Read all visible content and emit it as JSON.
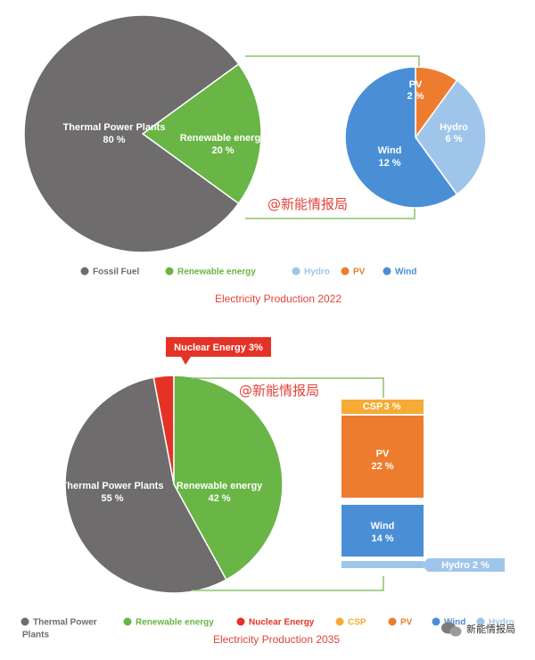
{
  "colors": {
    "fossil": "#6e6c6c",
    "renewable": "#69b545",
    "hydro": "#9fc6ea",
    "pv": "#ee7c2e",
    "wind": "#4a8fd6",
    "nuclear": "#e43326",
    "csp": "#f5ab34",
    "connector": "#8cc46a",
    "caption": "#e0433b"
  },
  "watermark": "@新能情报局",
  "wechat_badge": "新能情报局",
  "chart_data": [
    {
      "type": "pie",
      "title": "Electricity Production 2022",
      "slices": [
        {
          "key": "thermal",
          "label": "Thermal Power Plants",
          "value": 80,
          "value_label": "80 %",
          "color": "#6e6c6c"
        },
        {
          "key": "renewable",
          "label": "Renewable energy",
          "value": 20,
          "value_label": "20 %",
          "color": "#69b545"
        }
      ],
      "breakdown": {
        "type": "pie",
        "of": "Renewable energy",
        "slices": [
          {
            "key": "pv",
            "label": "PV",
            "value": 2,
            "value_label": "2 %",
            "color": "#ee7c2e"
          },
          {
            "key": "hydro",
            "label": "Hydro",
            "value": 6,
            "value_label": "6 %",
            "color": "#9fc6ea"
          },
          {
            "key": "wind",
            "label": "Wind",
            "value": 12,
            "value_label": "12 %",
            "color": "#4a8fd6"
          }
        ]
      },
      "legend": [
        {
          "label": "Fossil Fuel",
          "color": "#6e6c6c"
        },
        {
          "label": "Renewable energy",
          "color": "#69b545"
        },
        {
          "label": "Hydro",
          "color": "#9fc6ea"
        },
        {
          "label": "PV",
          "color": "#ee7c2e"
        },
        {
          "label": "Wind",
          "color": "#4a8fd6"
        }
      ]
    },
    {
      "type": "pie",
      "title": "Electricity Production 2035",
      "slices": [
        {
          "key": "nuclear",
          "label": "Nuclear Energy",
          "value": 3,
          "value_label": "3%",
          "color": "#e43326"
        },
        {
          "key": "renewable",
          "label": "Renewable energy",
          "value": 42,
          "value_label": "42 %",
          "color": "#69b545"
        },
        {
          "key": "thermal",
          "label": "Thermal Power Plants",
          "value": 55,
          "value_label": "55 %",
          "color": "#6e6c6c"
        }
      ],
      "callout": "Nuclear Energy 3%",
      "breakdown": {
        "type": "stacked-bar",
        "of": "Renewable energy",
        "segments": [
          {
            "key": "csp",
            "label": "CSP",
            "value": 3,
            "value_label": "3 %",
            "color": "#f5ab34"
          },
          {
            "key": "pv",
            "label": "PV",
            "value": 22,
            "value_label": "22 %",
            "color": "#ee7c2e"
          },
          {
            "key": "wind",
            "label": "Wind",
            "value": 14,
            "value_label": "14 %",
            "color": "#4a8fd6"
          },
          {
            "key": "hydro",
            "label": "Hydro",
            "value": 2,
            "value_label": "2 %",
            "color": "#9fc6ea"
          }
        ],
        "hydro_callout": "Hydro 2 %"
      },
      "legend": [
        {
          "label": "Thermal Power Plants",
          "color": "#6e6c6c"
        },
        {
          "label": "Renewable energy",
          "color": "#69b545"
        },
        {
          "label": "Nuclear Energy",
          "color": "#e43326"
        },
        {
          "label": "CSP",
          "color": "#f5ab34"
        },
        {
          "label": "PV",
          "color": "#ee7c2e"
        },
        {
          "label": "Wind",
          "color": "#4a8fd6"
        },
        {
          "label": "Hydro",
          "color": "#9fc6ea"
        }
      ]
    }
  ]
}
